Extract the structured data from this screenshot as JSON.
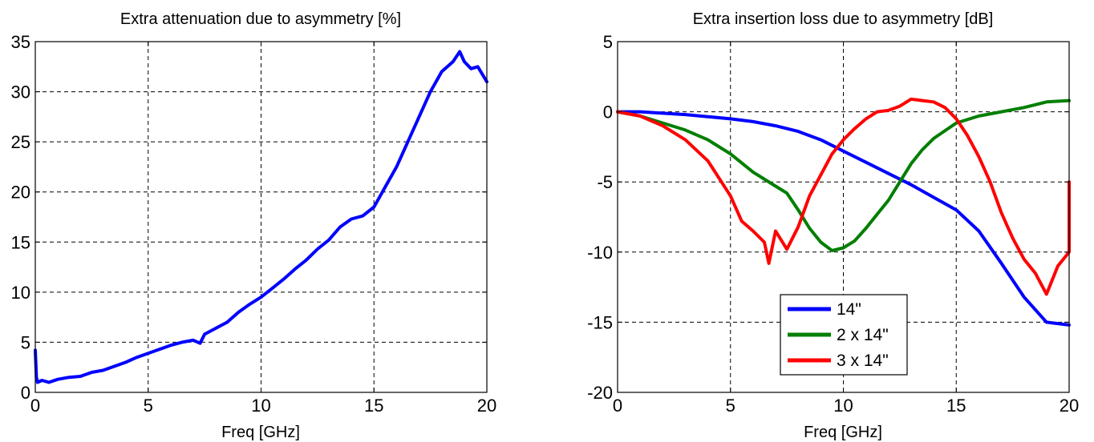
{
  "colors": {
    "blue": "#0000ff",
    "green": "#007f00",
    "red": "#ff0000"
  },
  "chart_data": [
    {
      "type": "line",
      "title": "Extra attenuation due to asymmetry [%]",
      "xlabel": "Freq [GHz]",
      "ylabel": "",
      "xlim": [
        0,
        20
      ],
      "ylim": [
        0,
        35
      ],
      "xticks": [
        "0",
        "5",
        "10",
        "15",
        "20"
      ],
      "yticks": [
        "0",
        "5",
        "10",
        "15",
        "20",
        "25",
        "30",
        "35"
      ],
      "grid": true,
      "series": [
        {
          "color": "blue",
          "x": [
            0,
            0.05,
            0.1,
            0.3,
            0.6,
            1,
            1.5,
            2,
            2.5,
            3,
            3.5,
            4,
            4.5,
            5,
            5.5,
            6,
            6.5,
            7,
            7.3,
            7.5,
            8,
            8.5,
            9,
            9.5,
            10,
            10.5,
            11,
            11.5,
            12,
            12.5,
            13,
            13.5,
            14,
            14.5,
            15,
            15.5,
            16,
            16.5,
            17,
            17.5,
            18,
            18.5,
            18.8,
            19,
            19.3,
            19.6,
            20
          ],
          "y": [
            4.2,
            1.5,
            1.0,
            1.2,
            1.0,
            1.3,
            1.5,
            1.6,
            2.0,
            2.2,
            2.6,
            3.0,
            3.5,
            3.9,
            4.3,
            4.7,
            5.0,
            5.2,
            4.9,
            5.8,
            6.4,
            7.0,
            8.0,
            8.8,
            9.5,
            10.4,
            11.3,
            12.3,
            13.2,
            14.3,
            15.2,
            16.5,
            17.3,
            17.6,
            18.5,
            20.5,
            22.5,
            25.0,
            27.5,
            30.0,
            32.0,
            33.0,
            34.0,
            33.0,
            32.3,
            32.5,
            31.0
          ]
        }
      ]
    },
    {
      "type": "line",
      "title": "Extra insertion loss due to asymmetry [dB]",
      "xlabel": "Freq [GHz]",
      "ylabel": "",
      "xlim": [
        0,
        20
      ],
      "ylim": [
        -20,
        5
      ],
      "xticks": [
        "0",
        "5",
        "10",
        "15",
        "20"
      ],
      "yticks": [
        "-20",
        "-15",
        "-10",
        "-5",
        "0",
        "5"
      ],
      "grid": true,
      "legend": {
        "placement": "lower-center",
        "entries": [
          "14\"",
          "2 x 14\"",
          "3 x 14\""
        ]
      },
      "series": [
        {
          "name": "14\"",
          "color": "blue",
          "x": [
            0,
            1,
            2,
            3,
            4,
            5,
            6,
            7,
            8,
            9,
            10,
            11,
            12,
            13,
            14,
            15,
            16,
            17,
            18,
            19,
            20
          ],
          "y": [
            0,
            0,
            -0.1,
            -0.2,
            -0.35,
            -0.5,
            -0.7,
            -1.0,
            -1.4,
            -2.0,
            -2.8,
            -3.6,
            -4.4,
            -5.2,
            -6.1,
            -7.0,
            -8.5,
            -10.8,
            -13.2,
            -15.0,
            -15.2
          ]
        },
        {
          "name": "2 x 14\"",
          "color": "green",
          "x": [
            0,
            1,
            2,
            3,
            4,
            5,
            6,
            7,
            7.5,
            8,
            8.5,
            9,
            9.5,
            10,
            10.5,
            11,
            11.5,
            12,
            12.5,
            13,
            13.5,
            14,
            15,
            16,
            17,
            18,
            19,
            20
          ],
          "y": [
            0,
            -0.3,
            -0.8,
            -1.3,
            -2.0,
            -3.0,
            -4.3,
            -5.3,
            -5.8,
            -7.0,
            -8.3,
            -9.3,
            -9.9,
            -9.7,
            -9.2,
            -8.3,
            -7.3,
            -6.3,
            -5.0,
            -3.7,
            -2.7,
            -1.9,
            -0.8,
            -0.3,
            0,
            0.3,
            0.7,
            0.8
          ]
        },
        {
          "name": "3 x 14\"",
          "color": "red",
          "x": [
            0,
            1,
            2,
            3,
            4,
            5,
            5.5,
            6,
            6.5,
            6.7,
            7,
            7.5,
            8,
            8.5,
            9,
            9.5,
            10,
            10.5,
            11,
            11.5,
            12,
            12.5,
            13,
            13.5,
            14,
            14.5,
            15,
            15.5,
            16,
            16.5,
            17,
            17.5,
            18,
            18.5,
            19,
            19.5,
            20,
            20,
            20
          ],
          "y": [
            0,
            -0.3,
            -1.0,
            -2.0,
            -3.5,
            -6.0,
            -7.8,
            -8.5,
            -9.3,
            -10.8,
            -8.5,
            -9.8,
            -8.2,
            -6.0,
            -4.5,
            -3.0,
            -2.0,
            -1.2,
            -0.5,
            0,
            0.1,
            0.4,
            0.9,
            0.8,
            0.7,
            0.3,
            -0.5,
            -1.7,
            -3.2,
            -5.0,
            -7.2,
            -9.0,
            -10.5,
            -11.5,
            -13.0,
            -11.0,
            -10.0,
            -8.5,
            -5.0
          ]
        }
      ]
    }
  ]
}
